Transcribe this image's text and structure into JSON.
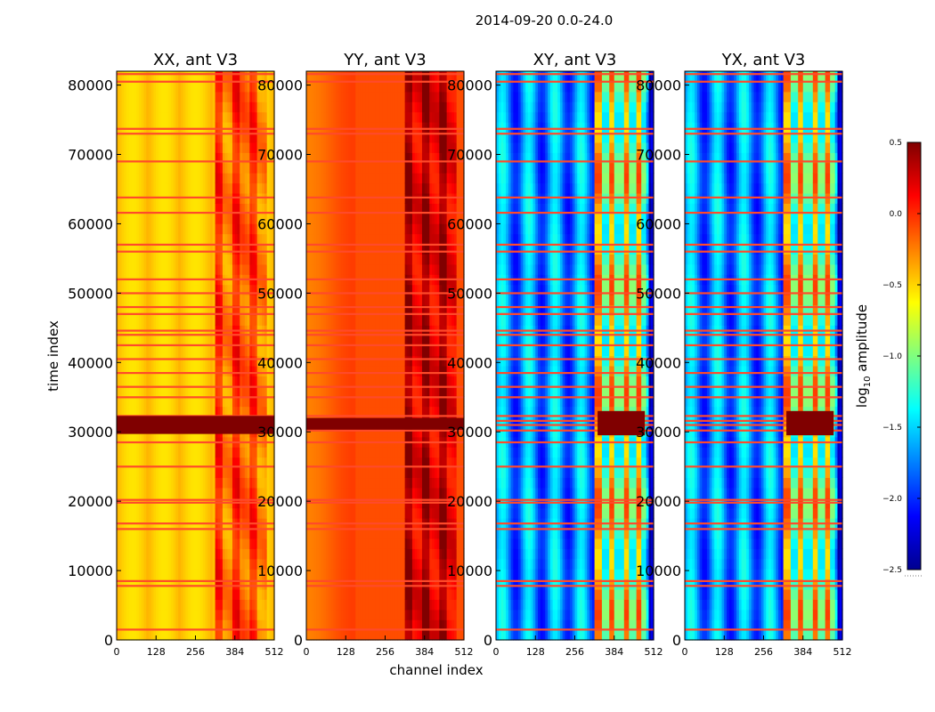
{
  "chart_data": {
    "type": "heatmap",
    "title": "2014-09-20 0.0-24.0",
    "xlabel": "channel index",
    "ylabel": "time index",
    "xlim": [
      0,
      512
    ],
    "ylim": [
      0,
      82000
    ],
    "x_ticks": [
      "0",
      "128",
      "256",
      "384",
      "512"
    ],
    "y_ticks": [
      "0",
      "10000",
      "20000",
      "30000",
      "40000",
      "50000",
      "60000",
      "70000",
      "80000"
    ],
    "panels": [
      {
        "name": "XX",
        "title": "XX, ant V3",
        "baseline": -0.4
      },
      {
        "name": "YY",
        "title": "YY, ant V3",
        "baseline": -0.1
      },
      {
        "name": "XY",
        "title": "XY, ant V3",
        "baseline": -1.7
      },
      {
        "name": "YX",
        "title": "YX, ant V3",
        "baseline": -1.7
      }
    ],
    "colorbar": {
      "label": "log10 amplitude",
      "label_base": "log",
      "label_sub": "10",
      "label_rest": " amplitude",
      "colormap": "jet",
      "range": [
        -2.5,
        0.5
      ],
      "ticks": [
        "0.5",
        "0.0",
        "−0.5",
        "−1.0",
        "−1.5",
        "−2.0",
        "−2.5"
      ]
    },
    "flagged_time_rows": [
      1500,
      7800,
      8500,
      16000,
      16800,
      19800,
      20200,
      25000,
      28500,
      30200,
      31000,
      31600,
      32300,
      35000,
      36500,
      38500,
      40500,
      42500,
      44000,
      44600,
      47000,
      48000,
      50000,
      52000,
      56000,
      57000,
      61600,
      63800,
      69000,
      73000,
      73700,
      80500,
      81600
    ]
  }
}
